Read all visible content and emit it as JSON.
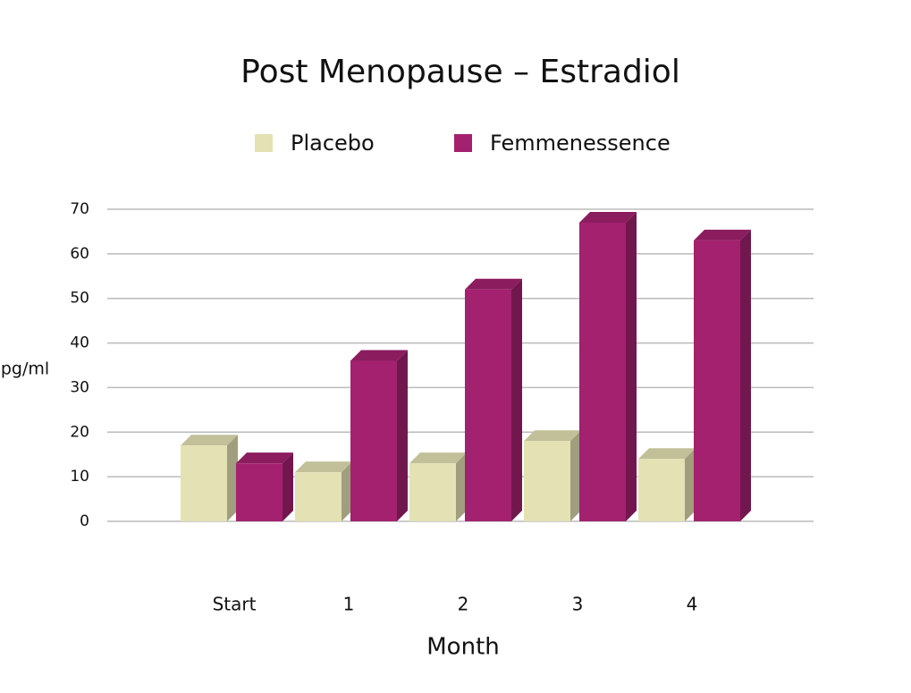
{
  "chart_data": {
    "type": "bar",
    "title": "Post Menopause – Estradiol",
    "x_label": "Month",
    "y_label": "pg/ml",
    "categories": [
      "Start",
      "1",
      "2",
      "3",
      "4"
    ],
    "series": [
      {
        "name": "Placebo",
        "color": "#e4e2b4",
        "values": [
          17,
          11,
          13,
          18,
          14
        ]
      },
      {
        "name": "Femmenessence",
        "color": "#a3216f",
        "values": [
          13,
          36,
          52,
          67,
          63
        ]
      }
    ],
    "ylim": [
      0,
      70
    ],
    "yticks": [
      0,
      10,
      20,
      30,
      40,
      50,
      60,
      70
    ],
    "grid": true
  }
}
